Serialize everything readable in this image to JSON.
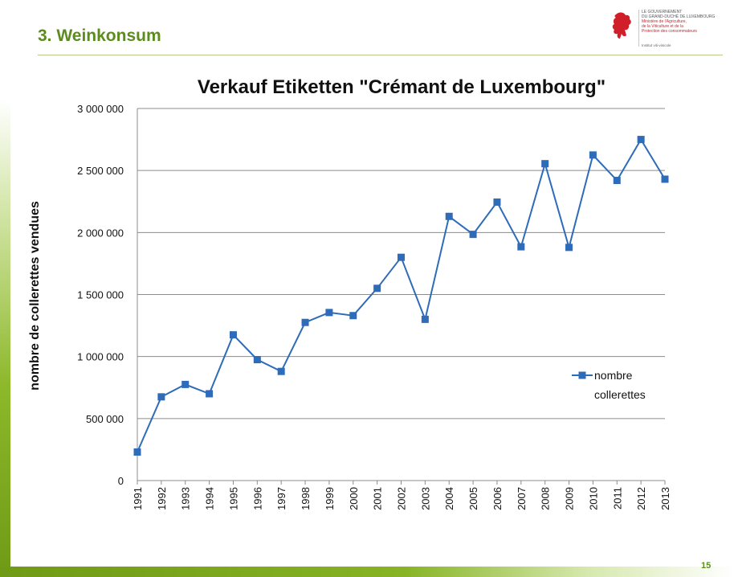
{
  "header": {
    "section_title": "3. Weinkonsum"
  },
  "logo": {
    "line1": "LE GOUVERNEMENT",
    "line2": "DU GRAND-DUCHÉ DE LUXEMBOURG",
    "line3": "Ministère de l'Agriculture,",
    "line4": "de la Viticulture et de la",
    "line5": "Protection des consommateurs",
    "sub": "Institut viti-vinicole"
  },
  "footer": {
    "page_number": "15"
  },
  "chart_data": {
    "type": "line",
    "title": "Verkauf Etiketten \"Crémant de Luxembourg\"",
    "xlabel": "",
    "ylabel": "nombre de collerettes vendues",
    "categories": [
      "1991",
      "1992",
      "1993",
      "1994",
      "1995",
      "1996",
      "1997",
      "1998",
      "1999",
      "2000",
      "2001",
      "2002",
      "2003",
      "2004",
      "2005",
      "2006",
      "2007",
      "2008",
      "2009",
      "2010",
      "2011",
      "2012",
      "2013"
    ],
    "series": [
      {
        "name": "nombre collerettes",
        "color": "#2e6bb8",
        "values": [
          230000,
          675000,
          775000,
          700000,
          1175000,
          975000,
          880000,
          1275000,
          1355000,
          1330000,
          1550000,
          1800000,
          1300000,
          2130000,
          1985000,
          2245000,
          1885000,
          2555000,
          1880000,
          2625000,
          2420000,
          2750000,
          2430000
        ]
      }
    ],
    "ylim": [
      0,
      3000000
    ],
    "yticks": [
      0,
      500000,
      1000000,
      1500000,
      2000000,
      2500000,
      3000000
    ],
    "ytick_labels": [
      "0",
      "500 000",
      "1 000 000",
      "1 500 000",
      "2 000 000",
      "2 500 000",
      "3 000 000"
    ],
    "grid": true,
    "legend_position": "right",
    "legend_label_lines": [
      "nombre",
      "collerettes"
    ]
  }
}
